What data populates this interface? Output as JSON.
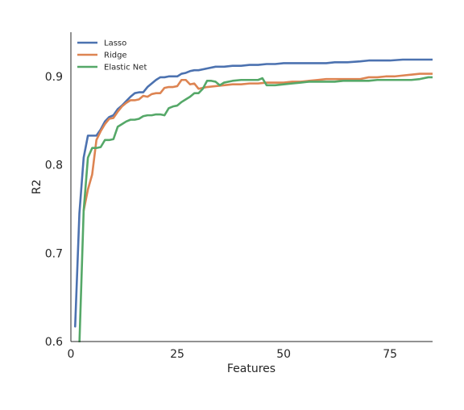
{
  "chart_data": {
    "type": "line",
    "title": "",
    "xlabel": "Features",
    "ylabel": "R2",
    "xlim": [
      0,
      85
    ],
    "ylim": [
      0.6,
      0.95
    ],
    "xticks": [
      0,
      25,
      50,
      75
    ],
    "yticks": [
      0.6,
      0.7,
      0.8,
      0.9
    ],
    "xtick_labels": [
      "0",
      "25",
      "50",
      "75"
    ],
    "ytick_labels": [
      "0.6",
      "0.7",
      "0.8",
      "0.9"
    ],
    "grid": false,
    "legend_position": "top-left",
    "series": [
      {
        "name": "Lasso",
        "color": "#4c72b0",
        "points": [
          [
            1,
            0.617
          ],
          [
            2,
            0.745
          ],
          [
            3,
            0.808
          ],
          [
            4,
            0.833
          ],
          [
            5,
            0.833
          ],
          [
            6,
            0.833
          ],
          [
            7,
            0.84
          ],
          [
            8,
            0.849
          ],
          [
            9,
            0.854
          ],
          [
            10,
            0.856
          ],
          [
            11,
            0.863
          ],
          [
            12,
            0.867
          ],
          [
            13,
            0.872
          ],
          [
            14,
            0.877
          ],
          [
            15,
            0.881
          ],
          [
            16,
            0.882
          ],
          [
            17,
            0.882
          ],
          [
            18,
            0.888
          ],
          [
            19,
            0.892
          ],
          [
            20,
            0.896
          ],
          [
            21,
            0.899
          ],
          [
            22,
            0.899
          ],
          [
            23,
            0.9
          ],
          [
            24,
            0.9
          ],
          [
            25,
            0.9
          ],
          [
            26,
            0.903
          ],
          [
            27,
            0.904
          ],
          [
            28,
            0.906
          ],
          [
            29,
            0.907
          ],
          [
            30,
            0.907
          ],
          [
            32,
            0.909
          ],
          [
            34,
            0.911
          ],
          [
            36,
            0.911
          ],
          [
            38,
            0.912
          ],
          [
            40,
            0.912
          ],
          [
            42,
            0.913
          ],
          [
            44,
            0.913
          ],
          [
            46,
            0.914
          ],
          [
            48,
            0.914
          ],
          [
            50,
            0.915
          ],
          [
            52,
            0.915
          ],
          [
            55,
            0.915
          ],
          [
            58,
            0.915
          ],
          [
            60,
            0.915
          ],
          [
            62,
            0.916
          ],
          [
            65,
            0.916
          ],
          [
            68,
            0.917
          ],
          [
            70,
            0.918
          ],
          [
            72,
            0.918
          ],
          [
            75,
            0.918
          ],
          [
            78,
            0.919
          ],
          [
            80,
            0.919
          ],
          [
            82,
            0.919
          ],
          [
            85,
            0.919
          ]
        ]
      },
      {
        "name": "Ridge",
        "color": "#dd8452",
        "points": [
          [
            3,
            0.748
          ],
          [
            4,
            0.772
          ],
          [
            5,
            0.789
          ],
          [
            6,
            0.828
          ],
          [
            7,
            0.838
          ],
          [
            8,
            0.846
          ],
          [
            9,
            0.852
          ],
          [
            10,
            0.853
          ],
          [
            11,
            0.86
          ],
          [
            12,
            0.866
          ],
          [
            13,
            0.87
          ],
          [
            14,
            0.873
          ],
          [
            15,
            0.873
          ],
          [
            16,
            0.874
          ],
          [
            17,
            0.878
          ],
          [
            18,
            0.877
          ],
          [
            19,
            0.88
          ],
          [
            20,
            0.881
          ],
          [
            21,
            0.881
          ],
          [
            22,
            0.887
          ],
          [
            23,
            0.888
          ],
          [
            24,
            0.888
          ],
          [
            25,
            0.889
          ],
          [
            26,
            0.896
          ],
          [
            27,
            0.896
          ],
          [
            28,
            0.891
          ],
          [
            29,
            0.892
          ],
          [
            30,
            0.886
          ],
          [
            31,
            0.887
          ],
          [
            32,
            0.888
          ],
          [
            34,
            0.889
          ],
          [
            36,
            0.89
          ],
          [
            38,
            0.891
          ],
          [
            40,
            0.891
          ],
          [
            42,
            0.892
          ],
          [
            44,
            0.892
          ],
          [
            46,
            0.893
          ],
          [
            48,
            0.893
          ],
          [
            50,
            0.893
          ],
          [
            52,
            0.894
          ],
          [
            54,
            0.894
          ],
          [
            56,
            0.895
          ],
          [
            58,
            0.896
          ],
          [
            60,
            0.897
          ],
          [
            62,
            0.897
          ],
          [
            64,
            0.897
          ],
          [
            66,
            0.897
          ],
          [
            68,
            0.897
          ],
          [
            70,
            0.899
          ],
          [
            72,
            0.899
          ],
          [
            74,
            0.9
          ],
          [
            76,
            0.9
          ],
          [
            78,
            0.901
          ],
          [
            80,
            0.902
          ],
          [
            82,
            0.903
          ],
          [
            85,
            0.903
          ]
        ]
      },
      {
        "name": "Elastic Net",
        "color": "#55a868",
        "points": [
          [
            2,
            0.597
          ],
          [
            3,
            0.748
          ],
          [
            4,
            0.808
          ],
          [
            5,
            0.819
          ],
          [
            6,
            0.819
          ],
          [
            7,
            0.82
          ],
          [
            8,
            0.828
          ],
          [
            9,
            0.828
          ],
          [
            10,
            0.829
          ],
          [
            11,
            0.843
          ],
          [
            12,
            0.846
          ],
          [
            13,
            0.849
          ],
          [
            14,
            0.851
          ],
          [
            15,
            0.851
          ],
          [
            16,
            0.852
          ],
          [
            17,
            0.855
          ],
          [
            18,
            0.856
          ],
          [
            19,
            0.856
          ],
          [
            20,
            0.857
          ],
          [
            21,
            0.857
          ],
          [
            22,
            0.856
          ],
          [
            23,
            0.864
          ],
          [
            24,
            0.866
          ],
          [
            25,
            0.867
          ],
          [
            26,
            0.871
          ],
          [
            27,
            0.874
          ],
          [
            28,
            0.877
          ],
          [
            29,
            0.881
          ],
          [
            30,
            0.881
          ],
          [
            31,
            0.886
          ],
          [
            32,
            0.895
          ],
          [
            33,
            0.895
          ],
          [
            34,
            0.894
          ],
          [
            35,
            0.89
          ],
          [
            36,
            0.893
          ],
          [
            38,
            0.895
          ],
          [
            40,
            0.896
          ],
          [
            42,
            0.896
          ],
          [
            44,
            0.896
          ],
          [
            45,
            0.898
          ],
          [
            46,
            0.89
          ],
          [
            48,
            0.89
          ],
          [
            50,
            0.891
          ],
          [
            52,
            0.892
          ],
          [
            54,
            0.893
          ],
          [
            56,
            0.894
          ],
          [
            58,
            0.894
          ],
          [
            60,
            0.894
          ],
          [
            62,
            0.894
          ],
          [
            64,
            0.895
          ],
          [
            66,
            0.895
          ],
          [
            68,
            0.895
          ],
          [
            70,
            0.895
          ],
          [
            72,
            0.896
          ],
          [
            74,
            0.896
          ],
          [
            76,
            0.896
          ],
          [
            78,
            0.896
          ],
          [
            80,
            0.896
          ],
          [
            82,
            0.897
          ],
          [
            84,
            0.899
          ],
          [
            85,
            0.899
          ]
        ]
      }
    ]
  }
}
